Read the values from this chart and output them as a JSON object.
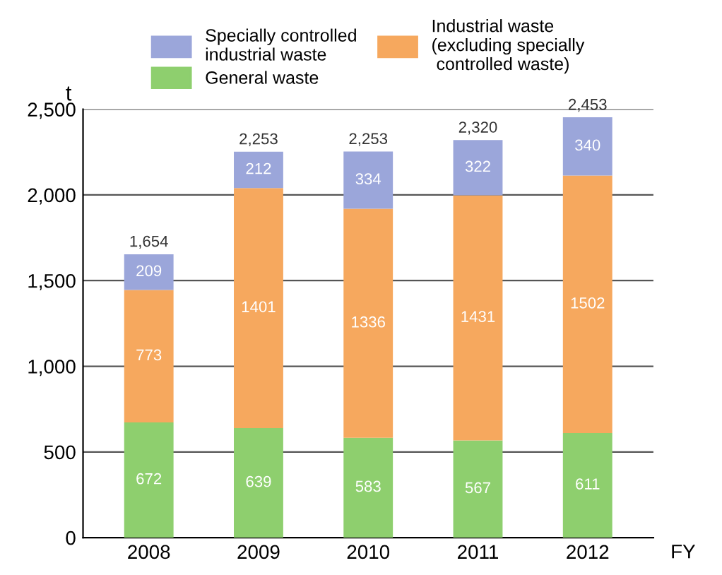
{
  "chart_data": {
    "type": "bar",
    "stacked": true,
    "ylabel": "t",
    "xlabel": "FY",
    "categories": [
      "2008",
      "2009",
      "2010",
      "2011",
      "2012"
    ],
    "series": [
      {
        "name": "General waste",
        "color": "#8ecf6e",
        "values": [
          672,
          639,
          583,
          567,
          611
        ]
      },
      {
        "name": "Industrial waste\n(excluding specially\n controlled waste)",
        "color": "#f6a85e",
        "values": [
          773,
          1401,
          1336,
          1431,
          1502
        ]
      },
      {
        "name": "Specially controlled\nindustrial waste",
        "color": "#9ba6da",
        "values": [
          209,
          212,
          334,
          322,
          340
        ]
      }
    ],
    "totals": [
      "1,654",
      "2,253",
      "2,253",
      "2,320",
      "2,453"
    ],
    "data_labels": true,
    "ylim": [
      0,
      2500
    ],
    "yticks": [
      0,
      {
        "value": 500,
        "label": "500"
      },
      {
        "value": 1000,
        "label": "1,000"
      },
      {
        "value": 1500,
        "label": "1,500"
      },
      {
        "value": 2000,
        "label": "2,000"
      },
      {
        "value": 2500,
        "label": "2,500"
      }
    ],
    "grid": "y",
    "legend": "top"
  }
}
